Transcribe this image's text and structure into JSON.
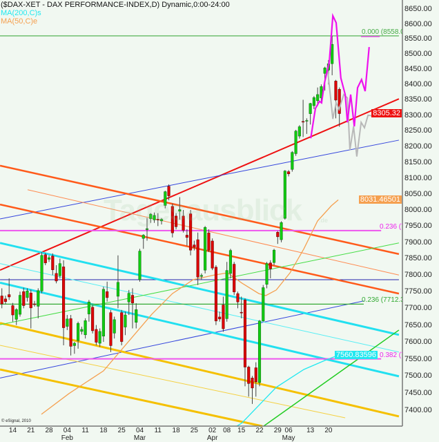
{
  "header": {
    "title": "($DAX-XET - DAX PERFORMANCE-INDEX,D) Dynamic,0:00-24:00",
    "ma200_label": "MA(200,C)s",
    "ma50_label": "MA(50,C)e"
  },
  "watermark": {
    "text": "Tagesausblick",
    "suffix": ".de"
  },
  "copyright": "© eSignal, 2010",
  "colors": {
    "background": "#f1f8f1",
    "up": "#11cc11",
    "down": "#dd0000",
    "ma200": "#22e8f0",
    "ma50": "#f5a050",
    "projection_primary": "#ee11ee",
    "projection_secondary": "#b8b8b8"
  },
  "chart_data": {
    "type": "candlestick",
    "yscale": "log",
    "ylim": [
      7400,
      8650
    ],
    "y_ticks": [
      "8650.00",
      "8600.00",
      "8550.00",
      "8500.00",
      "8450.00",
      "8400.00",
      "8350.00",
      "8300.00",
      "8250.00",
      "8200.00",
      "8150.00",
      "8100.00",
      "8050.00",
      "8000.00",
      "7950.00",
      "7900.00",
      "7850.00",
      "7800.00",
      "7750.00",
      "7700.00",
      "7650.00",
      "7600.00",
      "7550.00",
      "7500.00",
      "7450.00",
      "7400.00"
    ],
    "x_ticks": [
      {
        "label": "14",
        "index": 3
      },
      {
        "label": "21",
        "index": 8
      },
      {
        "label": "28",
        "index": 13
      },
      {
        "label": "04",
        "index": 18,
        "month": "Feb"
      },
      {
        "label": "11",
        "index": 23
      },
      {
        "label": "18",
        "index": 28
      },
      {
        "label": "25",
        "index": 33
      },
      {
        "label": "04",
        "index": 38,
        "month": "Mar"
      },
      {
        "label": "11",
        "index": 43
      },
      {
        "label": "18",
        "index": 48
      },
      {
        "label": "25",
        "index": 53
      },
      {
        "label": "02",
        "index": 58,
        "month": "Apr"
      },
      {
        "label": "08",
        "index": 62
      },
      {
        "label": "15",
        "index": 66
      },
      {
        "label": "22",
        "index": 71
      },
      {
        "label": "29",
        "index": 76
      },
      {
        "label": "06",
        "index": 79,
        "month": "May"
      },
      {
        "label": "13",
        "index": 85
      },
      {
        "label": "20",
        "index": 90
      }
    ],
    "last_price": {
      "value": "8305.32",
      "color": "#ee1111"
    },
    "ma50_last": {
      "value": "8031.46501",
      "color": "#f5a050"
    },
    "ma200_last": {
      "value": "7560.83596",
      "color": "#22e8f0"
    },
    "candles_ohlc": [
      [
        7737,
        7760,
        7700,
        7713
      ],
      [
        7728,
        7738,
        7712,
        7720
      ],
      [
        7741,
        7790,
        7725,
        7734
      ],
      [
        7708,
        7716,
        7660,
        7680
      ],
      [
        7667,
        7700,
        7650,
        7696
      ],
      [
        7682,
        7750,
        7675,
        7739
      ],
      [
        7750,
        7762,
        7700,
        7708
      ],
      [
        7732,
        7760,
        7720,
        7752
      ],
      [
        7746,
        7756,
        7640,
        7701
      ],
      [
        7713,
        7722,
        7705,
        7711
      ],
      [
        7706,
        7760,
        7670,
        7753
      ],
      [
        7752,
        7870,
        7745,
        7860
      ],
      [
        7862,
        7868,
        7830,
        7837
      ],
      [
        7848,
        7860,
        7840,
        7853
      ],
      [
        7858,
        7866,
        7800,
        7816
      ],
      [
        7805,
        7830,
        7775,
        7782
      ],
      [
        7798,
        7850,
        7790,
        7835
      ],
      [
        7825,
        7845,
        7590,
        7642
      ],
      [
        7646,
        7680,
        7635,
        7668
      ],
      [
        7669,
        7680,
        7560,
        7587
      ],
      [
        7589,
        7600,
        7565,
        7596
      ],
      [
        7604,
        7660,
        7580,
        7655
      ],
      [
        7631,
        7645,
        7622,
        7637
      ],
      [
        7621,
        7670,
        7610,
        7663
      ],
      [
        7683,
        7725,
        7660,
        7719
      ],
      [
        7703,
        7710,
        7625,
        7633
      ],
      [
        7637,
        7650,
        7590,
        7599
      ],
      [
        7596,
        7640,
        7585,
        7631
      ],
      [
        7617,
        7765,
        7600,
        7757
      ],
      [
        7750,
        7780,
        7720,
        7732
      ],
      [
        7687,
        7695,
        7570,
        7589
      ],
      [
        7626,
        7675,
        7610,
        7666
      ],
      [
        7736,
        7860,
        7700,
        7778
      ],
      [
        7687,
        7695,
        7590,
        7601
      ],
      [
        7644,
        7690,
        7620,
        7680
      ],
      [
        7719,
        7755,
        7680,
        7745
      ],
      [
        7739,
        7760,
        7640,
        7716
      ],
      [
        7658,
        7715,
        7640,
        7696
      ],
      [
        7786,
        7880,
        7780,
        7873
      ],
      [
        7912,
        7925,
        7880,
        7922
      ],
      [
        7939,
        7975,
        7905,
        7942
      ],
      [
        7973,
        7990,
        7960,
        7987
      ],
      [
        7969,
        7992,
        7960,
        7983
      ],
      [
        7971,
        7990,
        7950,
        7969
      ],
      [
        7966,
        7975,
        7955,
        7971
      ],
      [
        8014,
        8060,
        8005,
        8057
      ],
      [
        8074,
        8080,
        8030,
        8044
      ],
      [
        8011,
        8020,
        7915,
        7929
      ],
      [
        7981,
        7990,
        7940,
        7948
      ],
      [
        7996,
        8040,
        7970,
        8001
      ],
      [
        7981,
        8000,
        7930,
        7937
      ],
      [
        7922,
        7940,
        7890,
        7915
      ],
      [
        7988,
        8000,
        7860,
        7876
      ],
      [
        7892,
        7905,
        7875,
        7885
      ],
      [
        7908,
        7930,
        7770,
        7794
      ],
      [
        7796,
        7805,
        7785,
        7799
      ],
      [
        7815,
        7950,
        7805,
        7946
      ],
      [
        7929,
        7940,
        7870,
        7876
      ],
      [
        7904,
        7912,
        7815,
        7821
      ],
      [
        7824,
        7830,
        7650,
        7662
      ],
      [
        7674,
        7690,
        7660,
        7668
      ],
      [
        7710,
        7735,
        7630,
        7639
      ],
      [
        7669,
        7840,
        7660,
        7814
      ],
      [
        7805,
        7880,
        7790,
        7875
      ],
      [
        7833,
        7840,
        7740,
        7749
      ],
      [
        7744,
        7750,
        7700,
        7719
      ],
      [
        7688,
        7735,
        7670,
        7686
      ],
      [
        7725,
        7730,
        7470,
        7526
      ],
      [
        7526,
        7530,
        7440,
        7478
      ],
      [
        7494,
        7500,
        7419,
        7465
      ],
      [
        7524,
        7540,
        7440,
        7483
      ],
      [
        7481,
        7665,
        7470,
        7662
      ],
      [
        7662,
        7770,
        7660,
        7762
      ],
      [
        7772,
        7840,
        7760,
        7835
      ],
      [
        7837,
        7845,
        7790,
        7819
      ],
      [
        7838,
        7880,
        7830,
        7876
      ],
      [
        7931,
        7935,
        7895,
        7917
      ],
      [
        7908,
        7965,
        7900,
        7961
      ],
      [
        7974,
        8125,
        7970,
        8122
      ],
      [
        8120,
        8125,
        8105,
        8113
      ],
      [
        8127,
        8185,
        8120,
        8181
      ],
      [
        8177,
        8253,
        8170,
        8249
      ],
      [
        8233,
        8268,
        8225,
        8263
      ],
      [
        8280,
        8350,
        8230,
        8279
      ],
      [
        8283,
        8290,
        8240,
        8283
      ],
      [
        8305,
        8340,
        8270,
        8338
      ],
      [
        8331,
        8362,
        8320,
        8357
      ],
      [
        8347,
        8390,
        8330,
        8367
      ],
      [
        8356,
        8400,
        8340,
        8393
      ],
      [
        8436,
        8458,
        8380,
        8454
      ],
      [
        8447,
        8480,
        8400,
        8468
      ],
      [
        8468,
        8560,
        8430,
        8532
      ],
      [
        8411,
        8415,
        8290,
        8349
      ],
      [
        8384,
        8390,
        8263,
        8305.32
      ]
    ],
    "ma50": [
      [
        10.9,
        7389
      ],
      [
        18.5,
        7449
      ],
      [
        28.0,
        7515
      ],
      [
        35.6,
        7610
      ],
      [
        41.3,
        7682
      ],
      [
        47.0,
        7744
      ],
      [
        52.7,
        7786
      ],
      [
        58.5,
        7800
      ],
      [
        62.2,
        7807
      ],
      [
        66.1,
        7776
      ],
      [
        70.8,
        7744
      ],
      [
        72.7,
        7738
      ],
      [
        75.6,
        7755
      ],
      [
        79.4,
        7807
      ],
      [
        83.2,
        7880
      ],
      [
        87.0,
        7966
      ],
      [
        90.8,
        8013
      ],
      [
        92.7,
        8031.47
      ]
    ],
    "ma200": [
      [
        64.7,
        7355
      ],
      [
        66.1,
        7364
      ],
      [
        75.6,
        7467
      ],
      [
        83.2,
        7519
      ],
      [
        88.9,
        7545
      ],
      [
        92.7,
        7560.84
      ]
    ],
    "projection_primary": [
      [
        85.1,
        8226
      ],
      [
        86.0,
        8293
      ],
      [
        86.4,
        8322
      ],
      [
        87.5,
        8345
      ],
      [
        88.1,
        8340
      ],
      [
        88.9,
        8405
      ],
      [
        90.2,
        8473
      ],
      [
        91.2,
        8627
      ],
      [
        92.1,
        8604
      ],
      [
        93.4,
        8421
      ],
      [
        94.6,
        8367
      ],
      [
        95.2,
        8277
      ],
      [
        96.1,
        8367
      ],
      [
        97.1,
        8264
      ],
      [
        98.0,
        8389
      ],
      [
        99.1,
        8416
      ],
      [
        100.1,
        8378
      ],
      [
        101.2,
        8523
      ]
    ],
    "projection_secondary": [
      [
        89.8,
        8443
      ],
      [
        91.2,
        8288
      ],
      [
        92.1,
        8340
      ],
      [
        92.9,
        8319
      ],
      [
        94.2,
        8367
      ],
      [
        95.2,
        8356
      ],
      [
        95.9,
        8189
      ],
      [
        96.9,
        8264
      ],
      [
        97.8,
        8168
      ],
      [
        99.0,
        8277
      ],
      [
        99.9,
        8260
      ],
      [
        100.9,
        8300
      ],
      [
        102.2,
        8298
      ]
    ],
    "trendlines": [
      {
        "color": "#ee1111",
        "from": [
          -0.5,
          7815
        ],
        "to": [
          109.4,
          8353
        ]
      },
      {
        "color": "#3344dd",
        "from": [
          -0.5,
          7972
        ],
        "to": [
          109.4,
          8220
        ]
      },
      {
        "color": "#3344dd",
        "from": [
          -0.5,
          7494
        ],
        "to": [
          99.7,
          7722
        ]
      },
      {
        "color": "#2222aa",
        "from": [
          -0.5,
          7786
        ],
        "to": [
          109.4,
          7786
        ]
      },
      {
        "color": "#ff5a1a",
        "from": [
          -0.5,
          8139
        ],
        "to": [
          109.4,
          7864
        ]
      },
      {
        "color": "#ff5a1a",
        "from": [
          -0.5,
          8017
        ],
        "to": [
          109.4,
          7744
        ]
      },
      {
        "color": "#ff8a50",
        "from": [
          7.1,
          8063
        ],
        "to": [
          109.4,
          7800
        ]
      },
      {
        "color": "#22e0f0",
        "from": [
          -0.5,
          7898
        ],
        "to": [
          109.4,
          7621
        ]
      },
      {
        "color": "#55eef5",
        "from": [
          -0.5,
          7835
        ],
        "to": [
          109.4,
          7570
        ]
      },
      {
        "color": "#22e0f0",
        "from": [
          -0.5,
          7777
        ],
        "to": [
          109.4,
          7499
        ]
      },
      {
        "color": "#f5c000",
        "from": [
          -0.5,
          7656
        ],
        "to": [
          109.4,
          7383
        ]
      },
      {
        "color": "#f5c000",
        "from": [
          -0.5,
          7519
        ],
        "to": [
          71.8,
          7355
        ]
      },
      {
        "color": "#f5d040",
        "from": [
          -0.5,
          7590
        ],
        "to": [
          94.6,
          7379
        ]
      },
      {
        "color": "#44dd44",
        "from": [
          -0.5,
          7651
        ],
        "to": [
          109.4,
          7898
        ]
      },
      {
        "color": "#22cc22",
        "from": [
          72.1,
          7355
        ],
        "to": [
          109.4,
          7635
        ]
      }
    ],
    "fib_levels": [
      {
        "label": "0.000 (8558.0",
        "price": 8560,
        "color": "#44aa44",
        "end": 109.4
      },
      {
        "label": "0.236 (7",
        "price": 7936,
        "color": "#ee55ee",
        "end": 104.5
      },
      {
        "label": "0.236 (7712.36",
        "price": 7712.36,
        "color": "#33aa33",
        "end": 99.7
      },
      {
        "label": "0.382 (7",
        "price": 7550,
        "color": "#ee55ee",
        "end": 104.5
      }
    ]
  }
}
